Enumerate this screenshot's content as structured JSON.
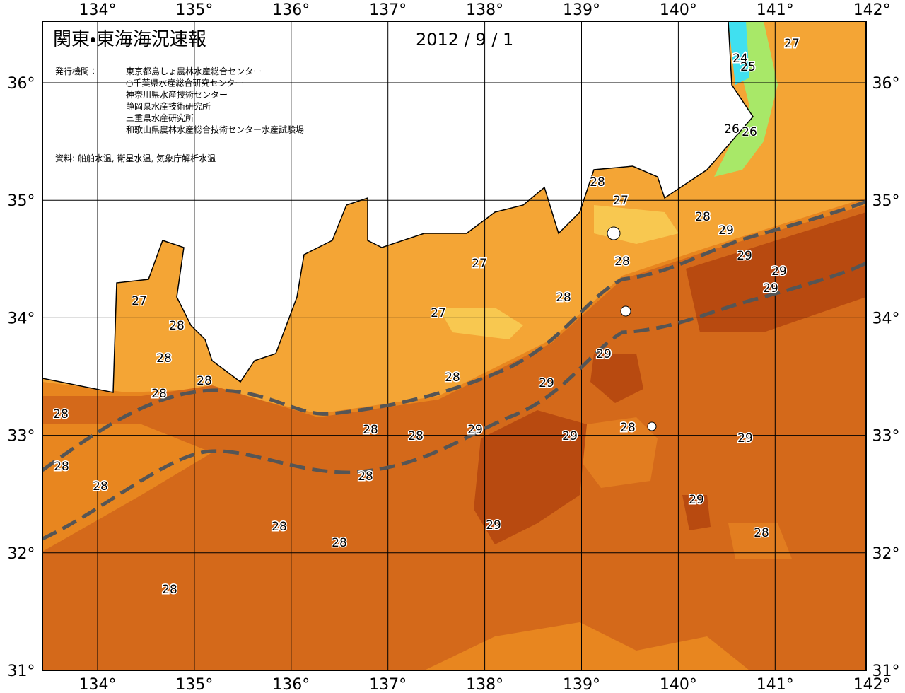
{
  "header": {
    "title": "関東・東海海況速報",
    "date": "2012 / 9 / 1"
  },
  "issuers": {
    "label": "発行機関：",
    "names": [
      "東京都島しょ農林水産総合センター",
      "○千葉県水産総合研究センター",
      "神奈川県水産技術センター",
      "静岡県水産技術研究所",
      "三重県水産研究所",
      "和歌山県農林水産総合技術センター水産試験場"
    ]
  },
  "source": "資料: 船舶水温, 衛星水温, 気象庁解析水温",
  "longitudes": [
    {
      "value": 134,
      "label": "134°"
    },
    {
      "value": 135,
      "label": "135°"
    },
    {
      "value": 136,
      "label": "136°"
    },
    {
      "value": 137,
      "label": "137°"
    },
    {
      "value": 138,
      "label": "138°"
    },
    {
      "value": 139,
      "label": "139°"
    },
    {
      "value": 140,
      "label": "140°"
    },
    {
      "value": 141,
      "label": "141°"
    },
    {
      "value": 142,
      "label": "142°"
    }
  ],
  "latitudes": [
    {
      "value": 31,
      "label": "31°"
    },
    {
      "value": 32,
      "label": "32°"
    },
    {
      "value": 33,
      "label": "33°"
    },
    {
      "value": 34,
      "label": "34°"
    },
    {
      "value": 35,
      "label": "35°"
    },
    {
      "value": 36,
      "label": "36°"
    }
  ],
  "contour_labels": [
    27,
    24,
    25,
    26,
    26,
    28,
    27,
    28,
    29,
    29,
    28,
    29,
    27,
    29,
    28,
    27,
    27,
    28,
    28,
    29,
    28,
    28,
    29,
    28,
    28,
    28,
    28,
    28,
    29,
    29,
    29,
    28,
    28,
    28,
    29,
    28,
    29,
    28,
    28,
    28
  ]
}
